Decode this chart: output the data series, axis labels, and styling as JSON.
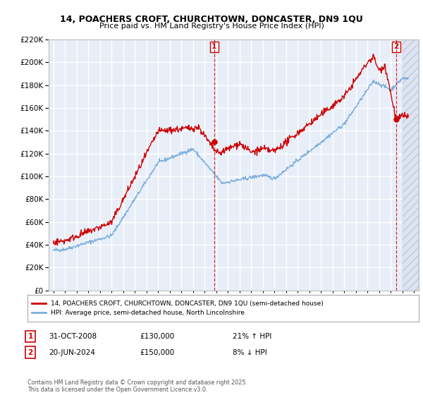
{
  "title_line1": "14, POACHERS CROFT, CHURCHTOWN, DONCASTER, DN9 1QU",
  "title_line2": "Price paid vs. HM Land Registry's House Price Index (HPI)",
  "legend_label1": "14, POACHERS CROFT, CHURCHTOWN, DONCASTER, DN9 1QU (semi-detached house)",
  "legend_label2": "HPI: Average price, semi-detached house, North Lincolnshire",
  "annotation1_date": "31-OCT-2008",
  "annotation1_price": "£130,000",
  "annotation1_hpi": "21% ↑ HPI",
  "annotation2_date": "20-JUN-2024",
  "annotation2_price": "£150,000",
  "annotation2_hpi": "8% ↓ HPI",
  "copyright": "Contains HM Land Registry data © Crown copyright and database right 2025.\nThis data is licensed under the Open Government Licence v3.0.",
  "line1_color": "#cc0000",
  "line2_color": "#7aaddc",
  "annotation_color": "#cc0000",
  "bg_color": "#ffffff",
  "plot_bg_color": "#e8eef8",
  "grid_color": "#ffffff",
  "ylim": [
    0,
    220000
  ],
  "yticks": [
    0,
    20000,
    40000,
    60000,
    80000,
    100000,
    120000,
    140000,
    160000,
    180000,
    200000,
    220000
  ],
  "xmin": 1994.6,
  "xmax": 2026.4,
  "marker1_x": 2008.83,
  "marker1_y": 130000,
  "marker2_x": 2024.47,
  "marker2_y": 150000
}
